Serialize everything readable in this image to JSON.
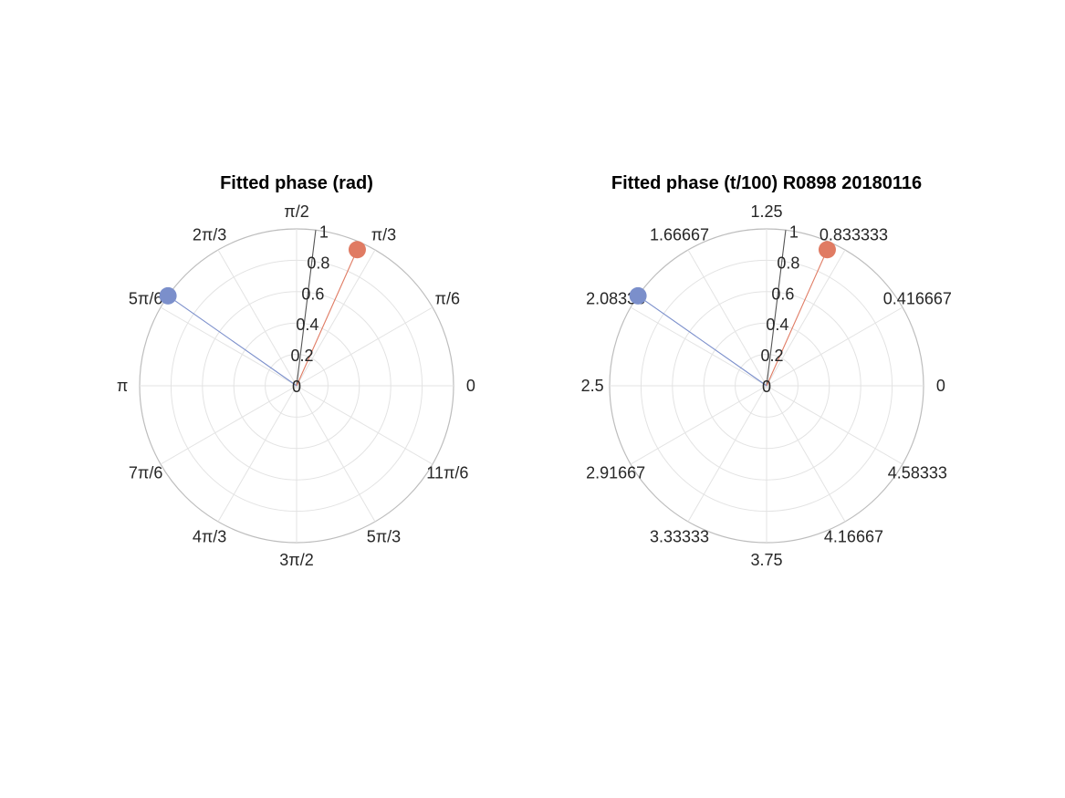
{
  "chart_data": [
    {
      "type": "polar",
      "title": "Fitted phase (rad)",
      "theta_tick_labels": [
        "0",
        "π/6",
        "π/3",
        "π/2",
        "2π/3",
        "5π/6",
        "π",
        "7π/6",
        "4π/3",
        "3π/2",
        "5π/3",
        "11π/6"
      ],
      "r_tick_labels": [
        "0",
        "0.2",
        "0.4",
        "0.6",
        "0.8",
        "1"
      ],
      "rlim": [
        0,
        1
      ],
      "grid": true,
      "series": [
        {
          "theta_deg": 83,
          "r": 1.0,
          "color": "#555555",
          "marker": false
        },
        {
          "theta_deg": 66,
          "r": 0.95,
          "color": "#E07B63",
          "marker": true
        },
        {
          "theta_deg": 145,
          "r": 1.0,
          "color": "#7B8FCB",
          "marker": true
        }
      ]
    },
    {
      "type": "polar",
      "title": "Fitted phase (t/100) R0898 20180116",
      "theta_tick_labels": [
        "0",
        "0.416667",
        "0.833333",
        "1.25",
        "1.66667",
        "2.08333",
        "2.5",
        "2.91667",
        "3.33333",
        "3.75",
        "4.16667",
        "4.58333"
      ],
      "r_tick_labels": [
        "0",
        "0.2",
        "0.4",
        "0.6",
        "0.8",
        "1"
      ],
      "rlim": [
        0,
        1
      ],
      "grid": true,
      "series": [
        {
          "theta_deg": 83,
          "r": 1.0,
          "color": "#555555",
          "marker": false
        },
        {
          "theta_deg": 66,
          "r": 0.95,
          "color": "#E07B63",
          "marker": true
        },
        {
          "theta_deg": 145,
          "r": 1.0,
          "color": "#7B8FCB",
          "marker": true
        }
      ]
    }
  ]
}
